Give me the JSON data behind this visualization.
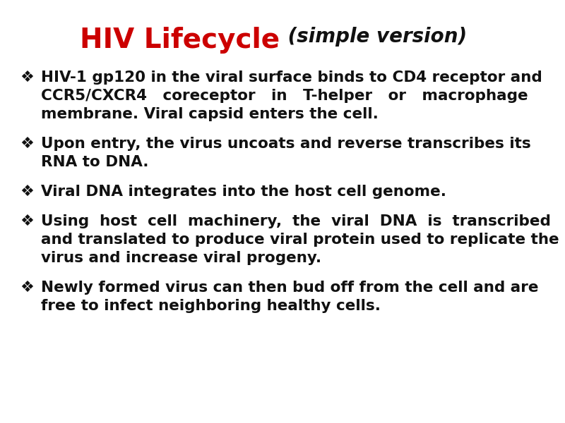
{
  "title_red": "HIV Lifecycle",
  "title_italic": " (simple version)",
  "title_color_red": "#cc0000",
  "title_color_black": "#111111",
  "title_fontsize": 28,
  "subtitle_fontsize": 20,
  "body_fontsize": 15.5,
  "background_color": "#ffffff",
  "text_color": "#111111",
  "bullet": "❖",
  "wrapped_bullets": [
    [
      "HIV-1 gp120 in the viral surface binds to CD4 receptor and",
      "CCR5/CXCR4   coreceptor   in   T-helper   or   macrophage",
      "membrane. Viral capsid enters the cell."
    ],
    [
      "Upon entry, the virus uncoats and reverse transcribes its",
      "RNA to DNA."
    ],
    [
      "Viral DNA integrates into the host cell genome."
    ],
    [
      "Using  host  cell  machinery,  the  viral  DNA  is  transcribed",
      "and translated to produce viral protein used to replicate the",
      "virus and increase viral progeny."
    ],
    [
      "Newly formed virus can then bud off from the cell and are",
      "free to infect neighboring healthy cells."
    ]
  ]
}
